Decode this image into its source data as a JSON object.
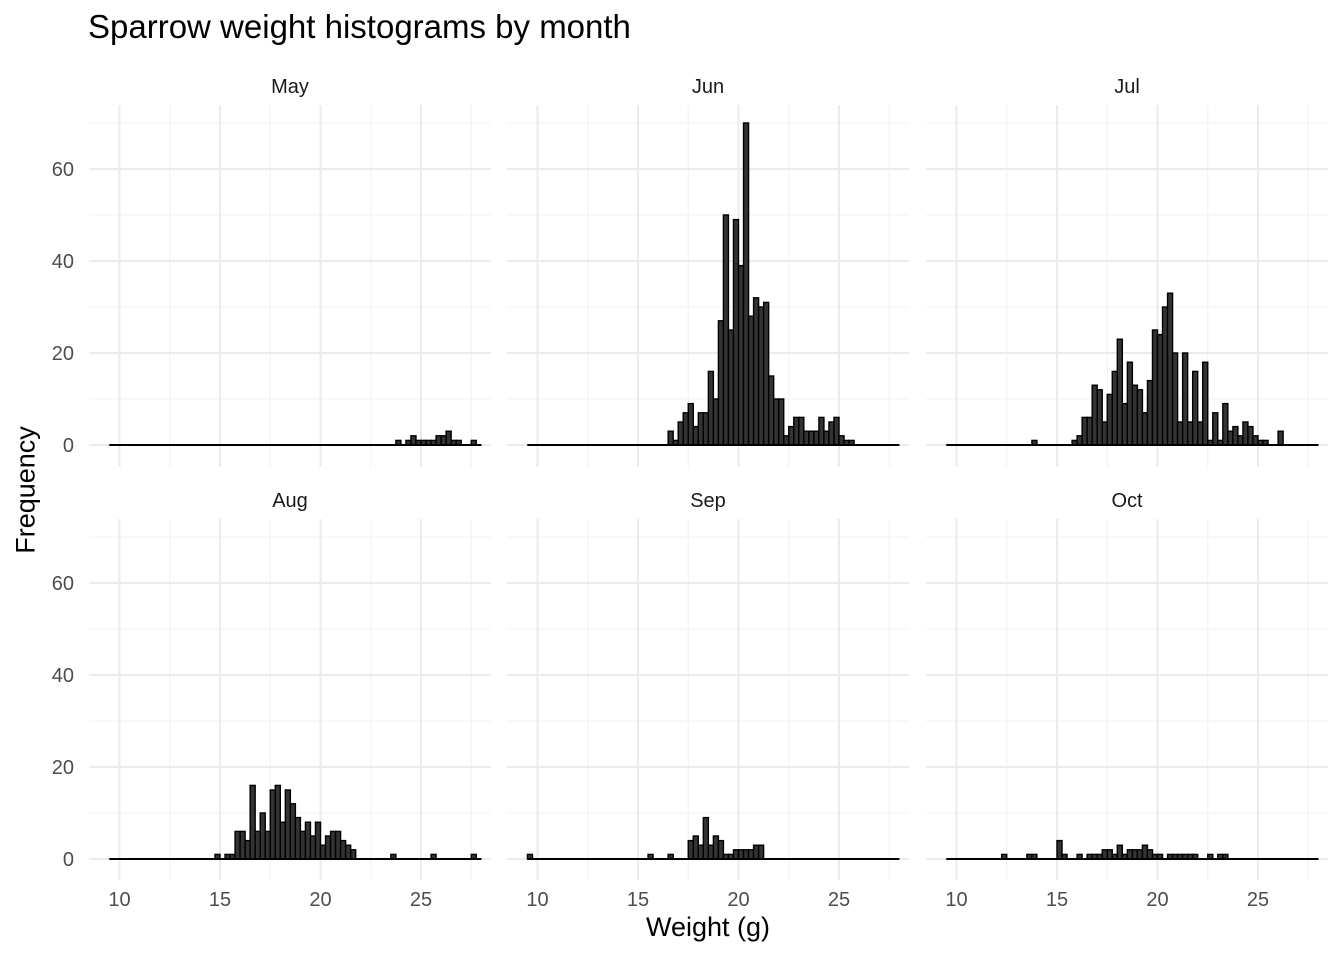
{
  "chart_data": {
    "type": "bar",
    "title": "Sparrow weight histograms by month",
    "xlabel": "Weight (g)",
    "ylabel": "Frequency",
    "xlim": [
      9.5,
      27.5
    ],
    "ylim": [
      0,
      72
    ],
    "x_ticks": [
      10,
      15,
      20,
      25
    ],
    "y_ticks": [
      0,
      20,
      40,
      60
    ],
    "bin_start": 9.5,
    "bin_width": 0.25,
    "grid": true,
    "bar_color": "#333333",
    "series": [
      {
        "name": "May",
        "values": [
          0,
          0,
          0,
          0,
          0,
          0,
          0,
          0,
          0,
          0,
          0,
          0,
          0,
          0,
          0,
          0,
          0,
          0,
          0,
          0,
          0,
          0,
          0,
          0,
          0,
          0,
          0,
          0,
          0,
          0,
          0,
          0,
          0,
          0,
          0,
          0,
          0,
          0,
          0,
          0,
          0,
          0,
          0,
          0,
          0,
          0,
          0,
          0,
          0,
          0,
          0,
          0,
          0,
          0,
          0,
          0,
          0,
          1,
          0,
          1,
          2,
          1,
          1,
          1,
          1,
          2,
          2,
          3,
          1,
          1,
          0,
          0,
          1,
          0
        ]
      },
      {
        "name": "Jun",
        "values": [
          0,
          0,
          0,
          0,
          0,
          0,
          0,
          0,
          0,
          0,
          0,
          0,
          0,
          0,
          0,
          0,
          0,
          0,
          0,
          0,
          0,
          0,
          0,
          0,
          0,
          0,
          0,
          0,
          3,
          1,
          5,
          7,
          9,
          4,
          7,
          7,
          16,
          10,
          27,
          50,
          25,
          49,
          39,
          70,
          28,
          32,
          30,
          31,
          15,
          10,
          10,
          2,
          4,
          6,
          6,
          3,
          3,
          3,
          6,
          3,
          5,
          6,
          2,
          1,
          1,
          0,
          0,
          0,
          0,
          0,
          0,
          0,
          0,
          0
        ]
      },
      {
        "name": "Jul",
        "values": [
          0,
          0,
          0,
          0,
          0,
          0,
          0,
          0,
          0,
          0,
          0,
          0,
          0,
          0,
          0,
          0,
          0,
          1,
          0,
          0,
          0,
          0,
          0,
          0,
          0,
          1,
          2,
          6,
          6,
          13,
          12,
          5,
          11,
          16,
          23,
          9,
          18,
          13,
          12,
          7,
          14,
          25,
          24,
          30,
          33,
          20,
          5,
          20,
          5,
          16,
          5,
          18,
          1,
          7,
          1,
          9,
          3,
          4,
          2,
          5,
          4,
          2,
          1,
          1,
          0,
          0,
          3,
          0,
          0,
          0,
          0,
          0,
          0,
          0
        ]
      },
      {
        "name": "Aug",
        "values": [
          0,
          0,
          0,
          0,
          0,
          0,
          0,
          0,
          0,
          0,
          0,
          0,
          0,
          0,
          0,
          0,
          0,
          0,
          0,
          0,
          0,
          1,
          0,
          1,
          1,
          6,
          6,
          4,
          16,
          6,
          10,
          6,
          15,
          16,
          8,
          15,
          12,
          9,
          6,
          8,
          5,
          8,
          3,
          5,
          6,
          6,
          4,
          3,
          2,
          0,
          0,
          0,
          0,
          0,
          0,
          0,
          1,
          0,
          0,
          0,
          0,
          0,
          0,
          0,
          1,
          0,
          0,
          0,
          0,
          0,
          0,
          0,
          1,
          0
        ]
      },
      {
        "name": "Sep",
        "values": [
          1,
          0,
          0,
          0,
          0,
          0,
          0,
          0,
          0,
          0,
          0,
          0,
          0,
          0,
          0,
          0,
          0,
          0,
          0,
          0,
          0,
          0,
          0,
          0,
          1,
          0,
          0,
          0,
          1,
          0,
          0,
          0,
          4,
          5,
          3,
          9,
          3,
          5,
          4,
          1,
          1,
          2,
          2,
          2,
          2,
          3,
          3,
          0,
          0,
          0,
          0,
          0,
          0,
          0,
          0,
          0,
          0,
          0,
          0,
          0,
          0,
          0,
          0,
          0,
          0,
          0,
          0,
          0,
          0,
          0,
          0,
          0,
          0,
          0
        ]
      },
      {
        "name": "Oct",
        "values": [
          0,
          0,
          0,
          0,
          0,
          0,
          0,
          0,
          0,
          0,
          0,
          1,
          0,
          0,
          0,
          0,
          1,
          1,
          0,
          0,
          0,
          0,
          4,
          1,
          0,
          0,
          1,
          0,
          1,
          1,
          1,
          2,
          2,
          1,
          3,
          1,
          2,
          2,
          2,
          3,
          2,
          1,
          1,
          0,
          1,
          1,
          1,
          1,
          1,
          1,
          0,
          0,
          1,
          0,
          1,
          1,
          0,
          0,
          0,
          0,
          0,
          0,
          0,
          0,
          0,
          0,
          0,
          0,
          0,
          0,
          0,
          0,
          0,
          0
        ]
      }
    ]
  }
}
